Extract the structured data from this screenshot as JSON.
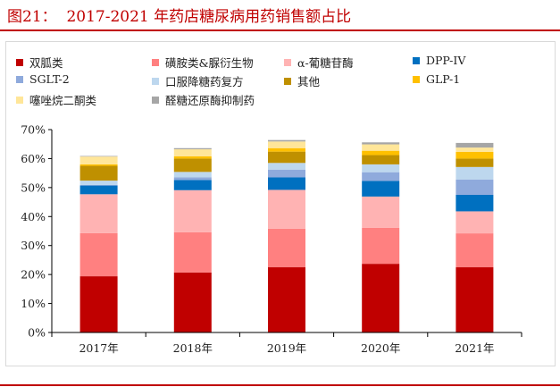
{
  "title": "图21：  2017-2021 年药店糖尿病用药销售额占比",
  "chart_data": {
    "type": "bar",
    "stacked": true,
    "title": "",
    "xlabel": "",
    "ylabel": "",
    "ylim": [
      0,
      70
    ],
    "yticks": [
      "0%",
      "10%",
      "20%",
      "30%",
      "40%",
      "50%",
      "60%",
      "70%"
    ],
    "grid": false,
    "legend_position": "top",
    "categories": [
      "2017年",
      "2018年",
      "2019年",
      "2020年",
      "2021年"
    ],
    "series": [
      {
        "name": "双胍类",
        "color": "#C00000",
        "values": [
          19.4,
          20.7,
          22.5,
          23.7,
          22.5
        ]
      },
      {
        "name": "磺胺类&脲衍生物",
        "color": "#FF8080",
        "values": [
          14.9,
          13.9,
          13.3,
          12.4,
          11.7
        ]
      },
      {
        "name": "α-葡糖苷酶",
        "color": "#FFB3B3",
        "values": [
          13.4,
          14.5,
          13.4,
          10.8,
          7.6
        ]
      },
      {
        "name": "DPP-IV",
        "color": "#0070C0",
        "values": [
          3.0,
          3.5,
          4.3,
          5.4,
          5.7
        ]
      },
      {
        "name": "SGLT-2",
        "color": "#8FAADC",
        "values": [
          0.2,
          0.9,
          2.7,
          3.0,
          5.3
        ]
      },
      {
        "name": "口服降糖药复方",
        "color": "#BDD7EE",
        "values": [
          1.5,
          1.9,
          2.3,
          2.7,
          4.3
        ]
      },
      {
        "name": "其他",
        "color": "#BF9000",
        "values": [
          5.1,
          4.6,
          3.9,
          3.2,
          2.9
        ]
      },
      {
        "name": "GLP-1",
        "color": "#FFC000",
        "values": [
          0.5,
          0.8,
          1.2,
          1.5,
          2.3
        ]
      },
      {
        "name": "噻唑烷二酮类",
        "color": "#FFE699",
        "values": [
          2.7,
          2.4,
          2.3,
          2.2,
          1.5
        ]
      },
      {
        "name": "醛糖还原酶抑制药",
        "color": "#A6A6A6",
        "values": [
          0.2,
          0.4,
          0.5,
          0.7,
          1.6
        ]
      }
    ]
  }
}
